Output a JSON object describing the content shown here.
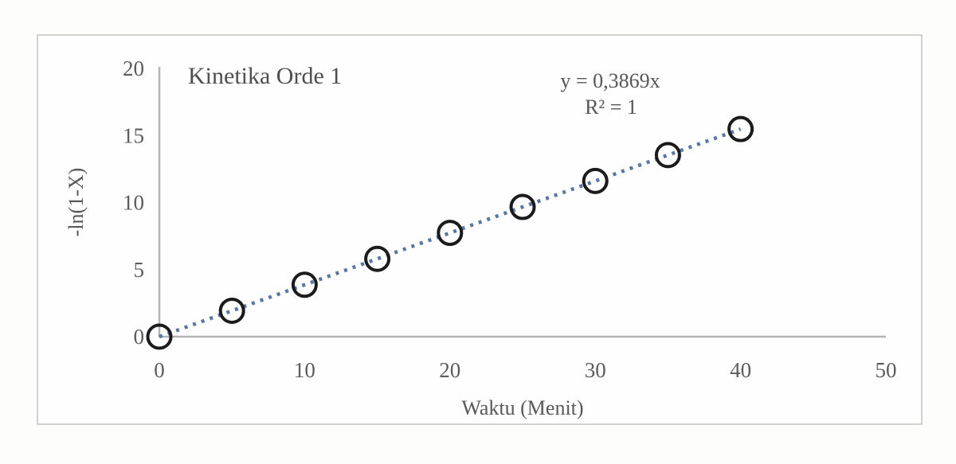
{
  "chart_data": {
    "type": "scatter",
    "title": "Kinetika Orde 1",
    "xlabel": "Waktu (Menit)",
    "ylabel": "-ln(1-X)",
    "annotation": {
      "equation": "y = 0,3869x",
      "r_squared": "R² = 1"
    },
    "slope": 0.3869,
    "x": [
      0,
      5,
      10,
      15,
      20,
      25,
      30,
      35,
      40
    ],
    "y": [
      0,
      1.93,
      3.87,
      5.8,
      7.74,
      9.67,
      11.61,
      13.54,
      15.48
    ],
    "xlim": [
      0,
      50
    ],
    "ylim": [
      0,
      20
    ],
    "x_ticks": [
      0,
      10,
      20,
      30,
      40,
      50
    ],
    "y_ticks": [
      0,
      5,
      10,
      15,
      20
    ],
    "grid": false,
    "legend_position": "none",
    "trendline": {
      "style": "dotted",
      "from_x": 0,
      "to_x": 40
    },
    "marker": {
      "shape": "open-circle"
    }
  },
  "colors": {
    "background": "#fdfdfc",
    "frame_border": "#d2d2d2",
    "axis_line": "#b4b4b4",
    "text": "#565656",
    "trendline": "#5a76a2",
    "marker_stroke": "#1b1b1d"
  }
}
